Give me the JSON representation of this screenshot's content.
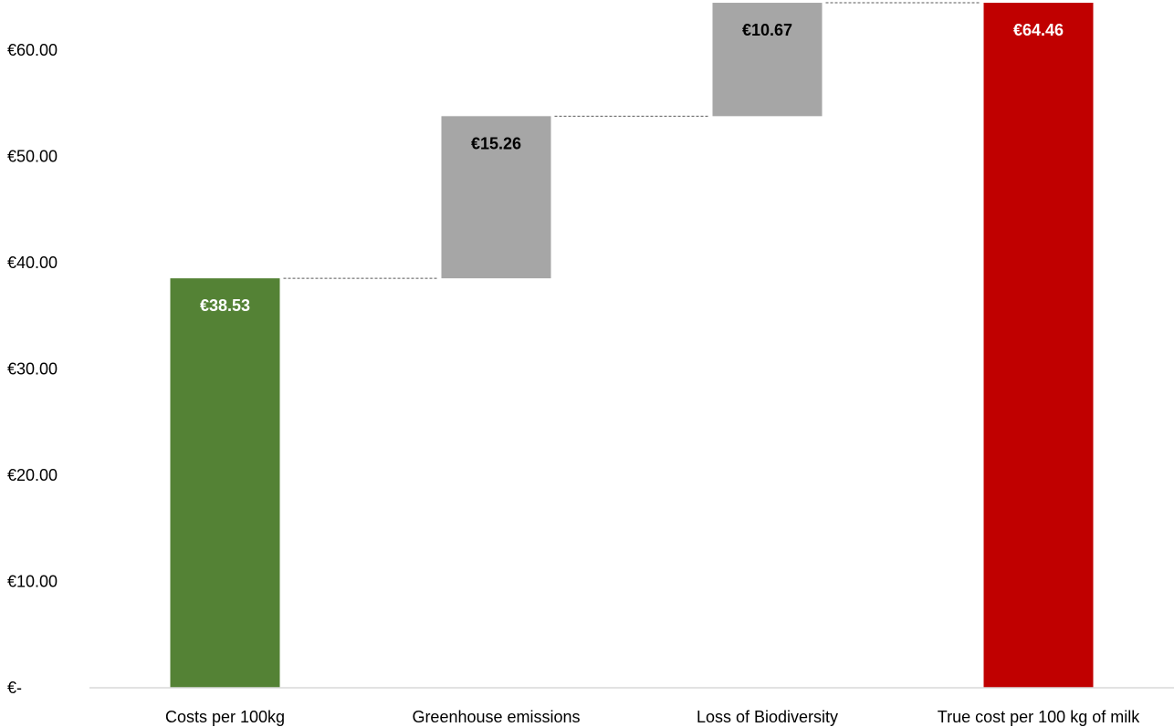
{
  "chart_data": {
    "type": "bar",
    "subtype": "waterfall",
    "title": "",
    "xlabel": "",
    "ylabel": "",
    "ylim": [
      0,
      64.46
    ],
    "yticks": [
      0,
      10,
      20,
      30,
      40,
      50,
      60
    ],
    "ytick_labels": [
      "€-",
      "€10.00",
      "€20.00",
      "€30.00",
      "€40.00",
      "€50.00",
      "€60.00"
    ],
    "grid": false,
    "legend": "none",
    "categories": [
      "Costs per 100kg",
      "Greenhouse emissions",
      "Loss of Biodiversity",
      "True cost per 100 kg of milk"
    ],
    "values": [
      38.53,
      15.26,
      10.67,
      64.46
    ],
    "bases": [
      0,
      38.53,
      53.79,
      0
    ],
    "kinds": [
      "total",
      "increase",
      "increase",
      "total"
    ],
    "data_labels": [
      "€38.53",
      "€15.26",
      "€10.67",
      "€64.46"
    ],
    "colors": [
      "#548235",
      "#a6a6a6",
      "#a6a6a6",
      "#c00000"
    ],
    "label_colors": [
      "#ffffff",
      "#000000",
      "#000000",
      "#ffffff"
    ]
  }
}
